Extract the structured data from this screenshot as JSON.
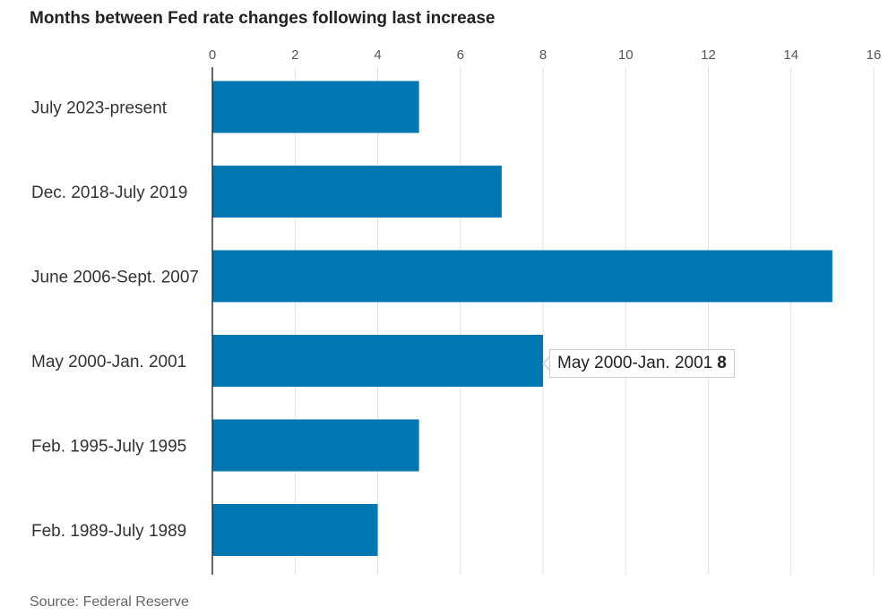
{
  "chart_data": {
    "type": "bar",
    "orientation": "horizontal",
    "title": "Months between Fed rate changes following last increase",
    "categories": [
      "July 2023-present",
      "Dec. 2018-July 2019",
      "June 2006-Sept. 2007",
      "May 2000-Jan. 2001",
      "Feb. 1995-July 1995",
      "Feb. 1989-July 1989"
    ],
    "values": [
      5,
      7,
      15,
      8,
      5,
      4
    ],
    "xlim": [
      0,
      16
    ],
    "xticks": [
      0,
      2,
      4,
      6,
      8,
      10,
      12,
      14,
      16
    ],
    "xaxis_position": "top",
    "grid": true,
    "bar_color": "#0077b0",
    "source": "Source: Federal Reserve"
  },
  "tooltip": {
    "label": "May 2000-Jan. 2001",
    "value": "8"
  }
}
